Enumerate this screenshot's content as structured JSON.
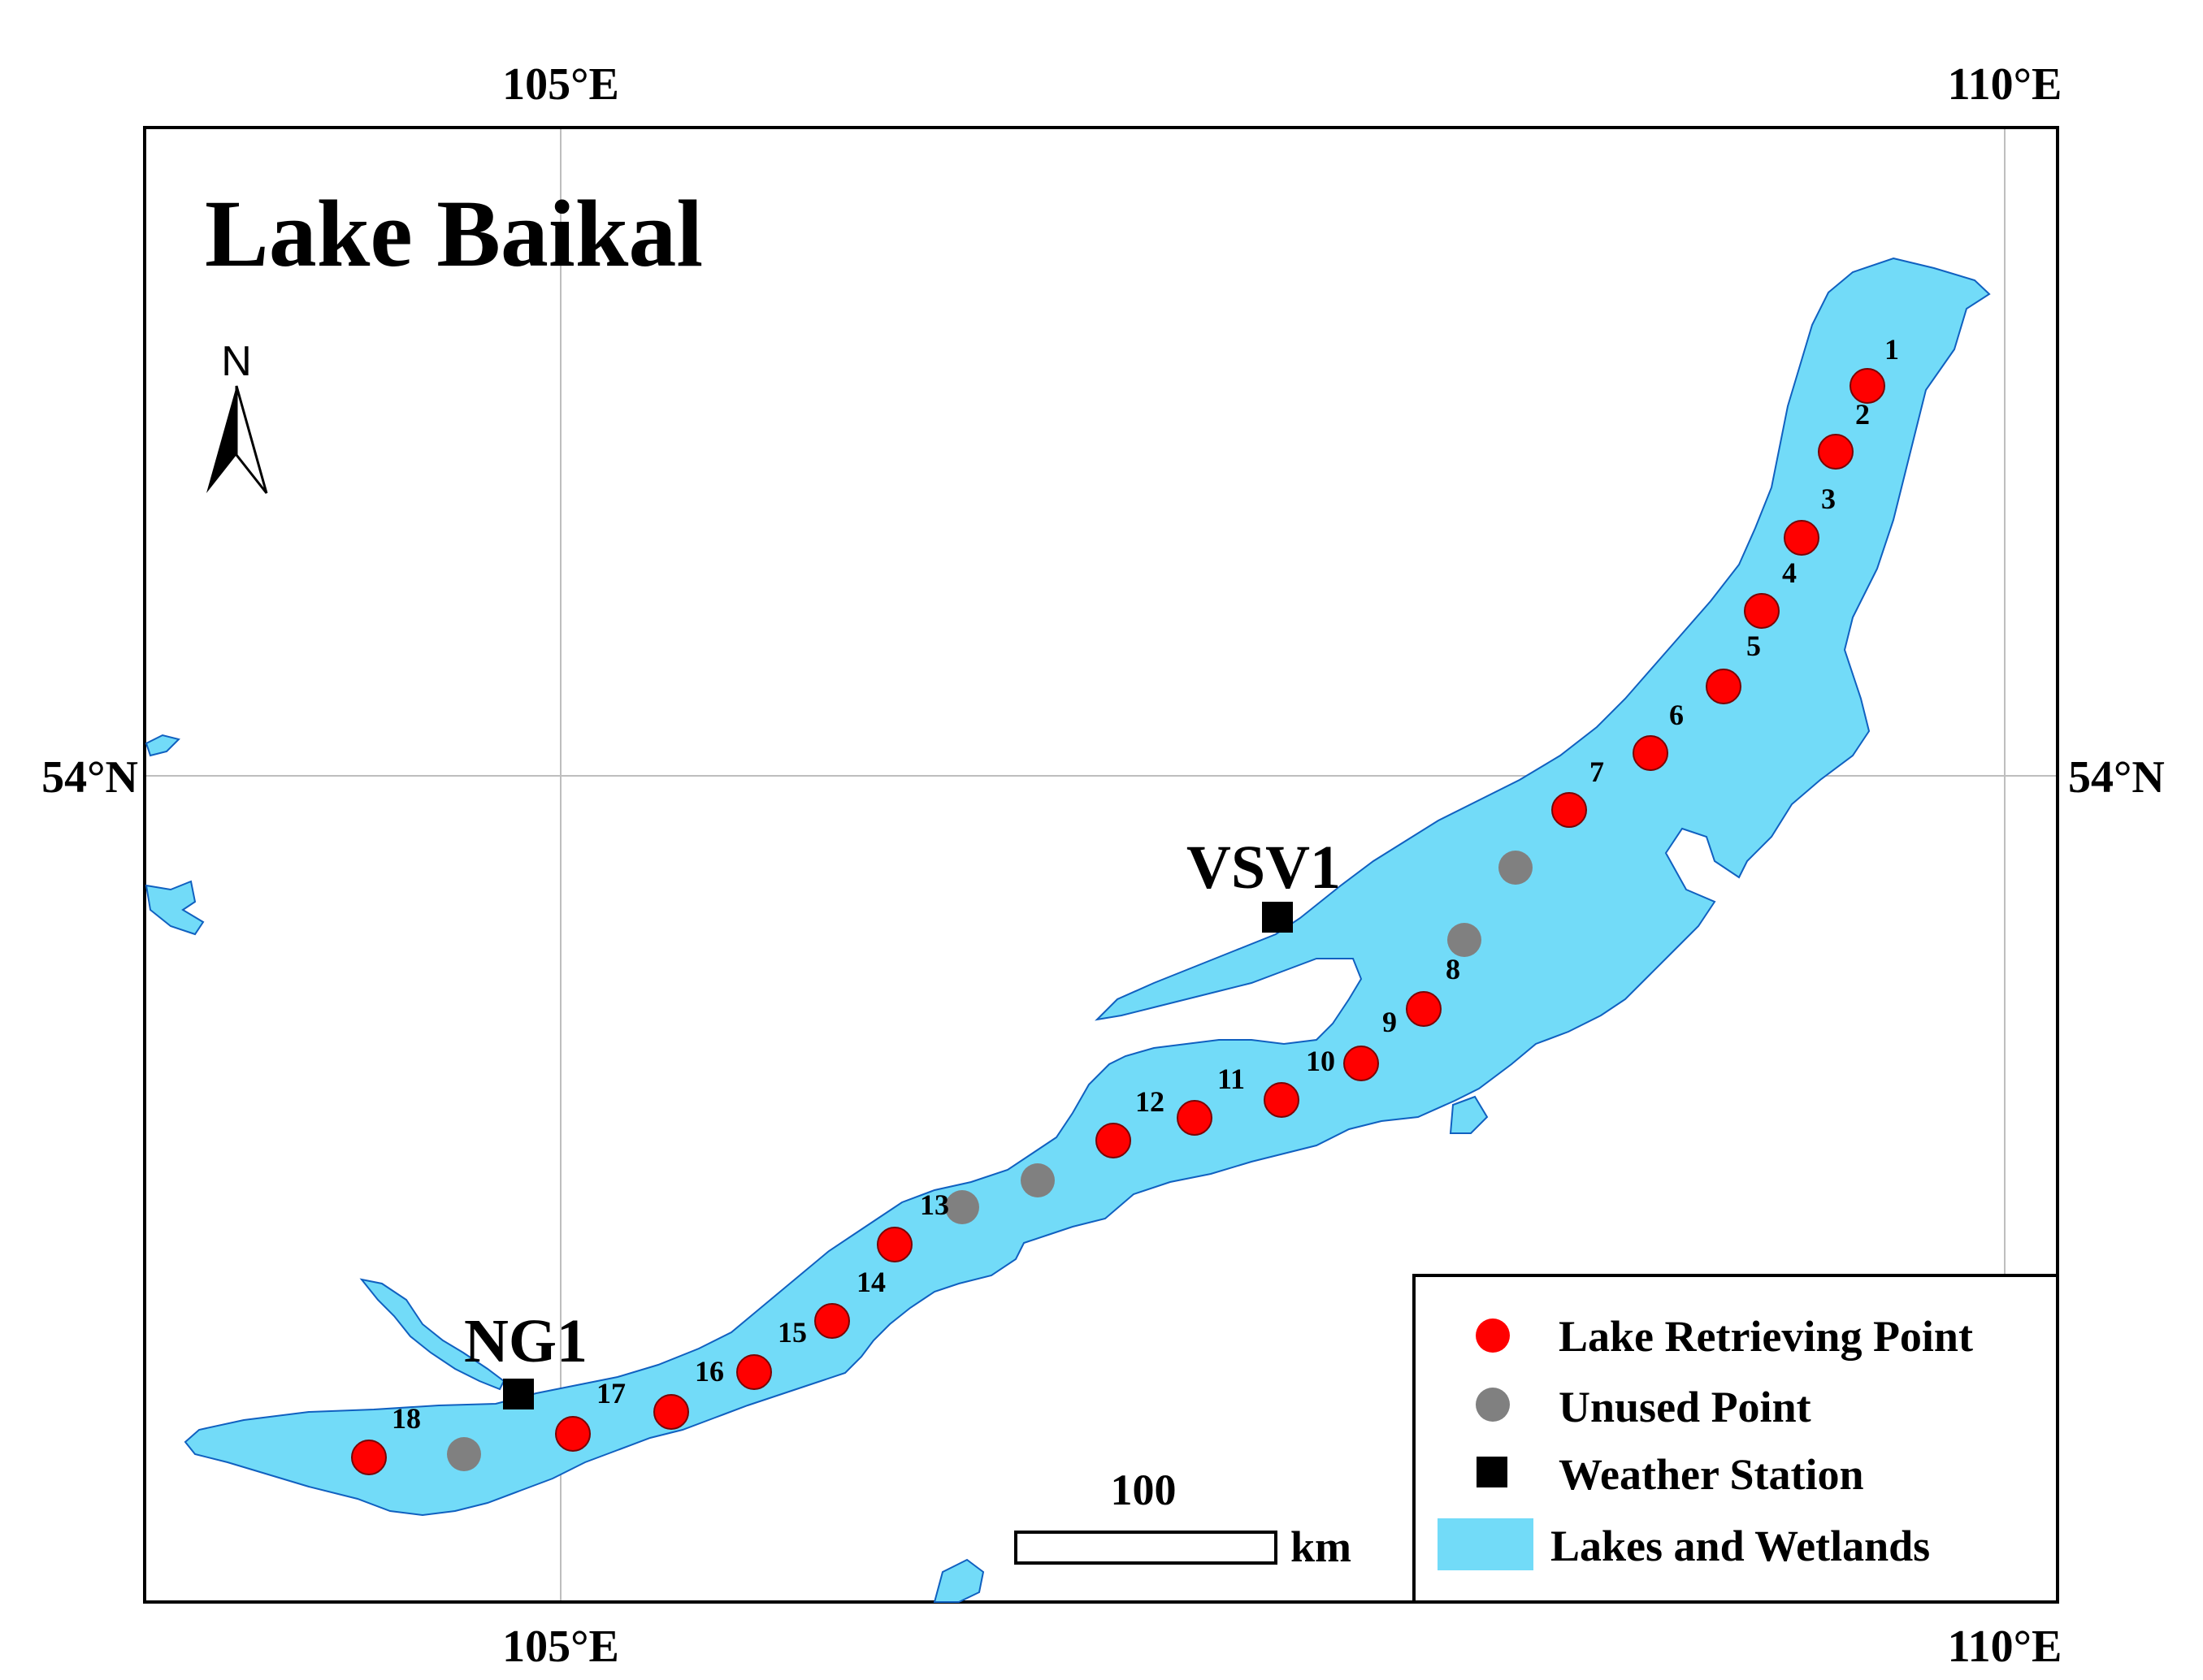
{
  "map": {
    "title": "Lake Baikal",
    "north_label": "N",
    "longitude_labels": [
      "105°E",
      "110°E"
    ],
    "latitude_labels": [
      "54°N"
    ],
    "colors": {
      "lake": "#72DBF8",
      "retrieving_point": "#FF0000",
      "unused_point": "#808080",
      "weather_station": "#000000",
      "grid": "#BEBEBE"
    },
    "retrieving_points": [
      "1",
      "2",
      "3",
      "4",
      "5",
      "6",
      "7",
      "8",
      "9",
      "10",
      "11",
      "12",
      "13",
      "14",
      "15",
      "16",
      "17",
      "18"
    ],
    "weather_stations": [
      "VSV1",
      "NG1"
    ]
  },
  "legend": {
    "items": [
      {
        "label": "Lake Retrieving Point",
        "symbol": "red-circle"
      },
      {
        "label": "Unused Point",
        "symbol": "gray-circle"
      },
      {
        "label": "Weather Station",
        "symbol": "black-square"
      },
      {
        "label": "Lakes and Wetlands",
        "symbol": "cyan-rectangle"
      }
    ]
  },
  "scale_bar": {
    "value": "100",
    "unit": "km"
  }
}
